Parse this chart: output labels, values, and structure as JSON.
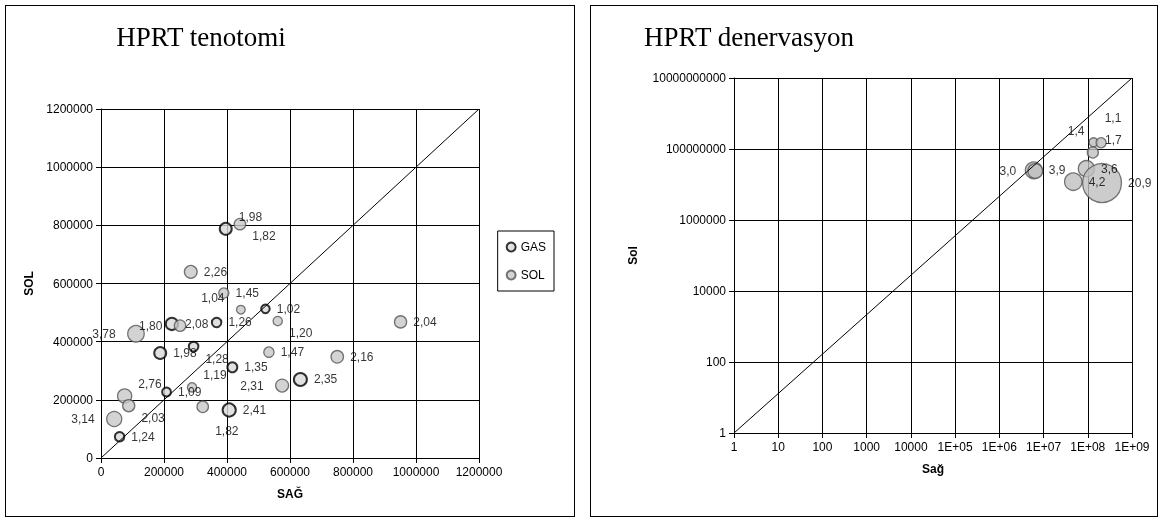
{
  "chart_data": [
    {
      "type": "bubble",
      "title": "HPRT tenotomi",
      "xlabel": "SAĞ",
      "ylabel": "SOL",
      "xlim": [
        0,
        1200000
      ],
      "ylim": [
        0,
        1200000
      ],
      "xticks": [
        0,
        200000,
        400000,
        600000,
        800000,
        1000000,
        1200000
      ],
      "yticks": [
        0,
        200000,
        400000,
        600000,
        800000,
        1000000,
        1200000
      ],
      "grid": true,
      "legend": "right",
      "marker": "circle",
      "series": [
        {
          "name": "GAS",
          "color": "#d9d9d9",
          "x": [
            396000,
            522000,
            225000,
            367000,
            188000,
            294000,
            417000,
            633000,
            208000,
            407000,
            59000
          ],
          "values": [
            788000,
            513000,
            461000,
            466000,
            361000,
            383000,
            312000,
            270000,
            227000,
            165000,
            73000
          ],
          "sizes": [
            1.98,
            1.02,
            2.08,
            1.26,
            1.98,
            1.28,
            1.35,
            2.35,
            1.09,
            2.41,
            1.24
          ],
          "value_labels": [
            "1,98",
            "1,02",
            "2,08",
            "1,26",
            "1,98",
            "1,28",
            "1,35",
            "2,35",
            "1,09",
            "2,41",
            "1,24"
          ]
        },
        {
          "name": "SOL",
          "color": "#c8c8c8",
          "x": [
            441000,
            285000,
            390000,
            444000,
            561000,
            251000,
            111000,
            533000,
            750000,
            575000,
            75000,
            88000,
            289000,
            323000,
            42000,
            951000
          ],
          "values": [
            804000,
            640000,
            567000,
            510000,
            471000,
            455000,
            427000,
            364000,
            348000,
            249000,
            213000,
            180000,
            243000,
            176000,
            134000,
            468000
          ],
          "sizes": [
            1.82,
            2.26,
            1.45,
            1.04,
            1.2,
            1.8,
            3.78,
            1.47,
            2.16,
            2.31,
            2.76,
            2.03,
            1.19,
            1.82,
            3.14,
            2.04
          ],
          "value_labels": [
            "1,82",
            "2,26",
            "1,45",
            "1,04",
            "1,20",
            "1,80",
            "3,78",
            "1,47",
            "2,16",
            "2,31",
            "2,76",
            "2,03",
            "1,19",
            "1,82",
            "3,14",
            "2,04"
          ]
        },
        {
          "type": "line",
          "color": "#000000",
          "marker": "none",
          "x": [
            0,
            1200000
          ],
          "values": [
            0,
            1200000
          ]
        }
      ]
    },
    {
      "type": "bubble",
      "title": "HPRT denervasyon",
      "xlabel": "Sağ",
      "ylabel": "Sol",
      "log": "xy",
      "xlim": [
        1,
        1000000000
      ],
      "ylim": [
        1,
        10000000000
      ],
      "xticks": [
        1,
        10,
        100,
        1000,
        10000,
        {
          "value": 100000,
          "label": "1E+05"
        },
        {
          "value": 1000000,
          "label": "1E+06"
        },
        {
          "value": 10000000,
          "label": "1E+07"
        },
        {
          "value": 100000000,
          "label": "1E+08"
        },
        {
          "value": 1000000000,
          "label": "1E+09"
        }
      ],
      "yticks": [
        1,
        100,
        10000,
        1000000,
        100000000,
        10000000000
      ],
      "grid": true,
      "legend": false,
      "marker": "circle",
      "series": [
        {
          "color": "#bfbfbf",
          "x": [
            6000000,
            6500000,
            47000000,
            93000000,
            210000000,
            130000000,
            135000000,
            200000000
          ],
          "values": [
            25000000,
            24000000,
            12000000,
            28000000,
            11000000,
            80000000,
            155000000,
            150000000
          ],
          "sizes": [
            3.9,
            3.0,
            4.2,
            3.6,
            20.9,
            1.7,
            1.1,
            1.4
          ],
          "value_labels": [
            "3,9",
            "3,0",
            "4,2",
            "3,6",
            "20,9",
            "1,7",
            "1,1",
            "1,4"
          ]
        },
        {
          "type": "line",
          "color": "#000000",
          "marker": "none",
          "x": [
            1,
            1000000000
          ],
          "values": [
            1,
            10000000000
          ]
        }
      ]
    }
  ]
}
